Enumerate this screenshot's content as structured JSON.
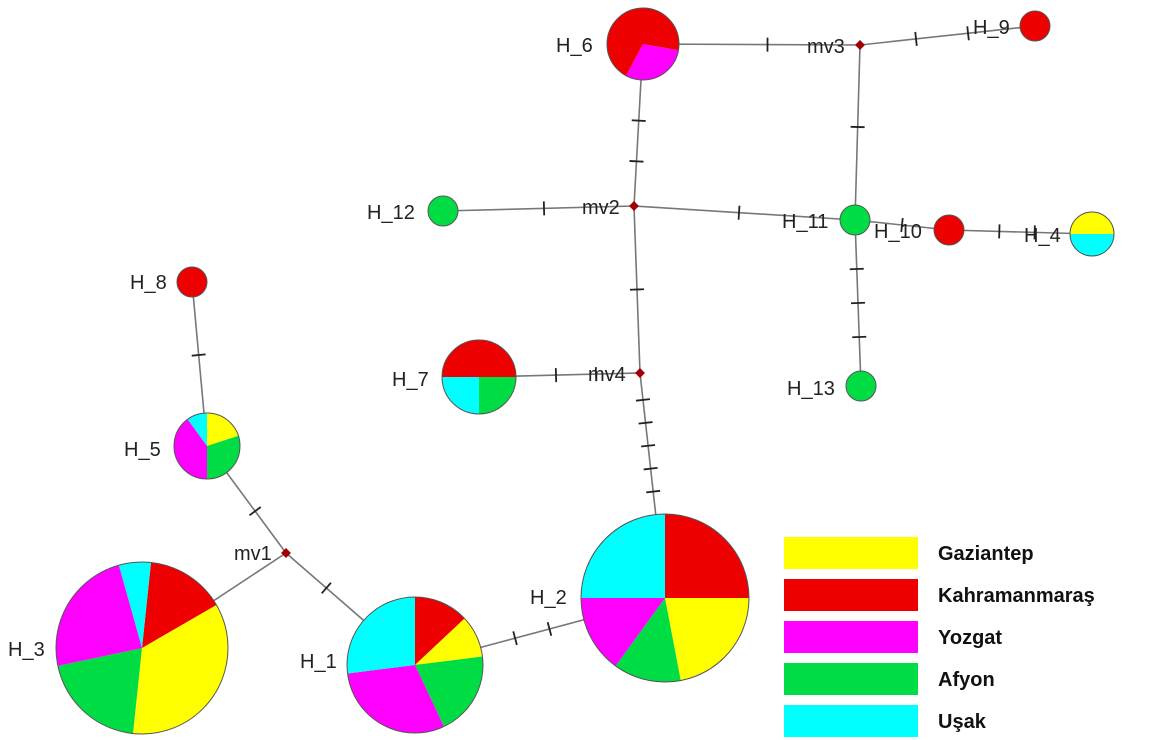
{
  "colors": {
    "Gaziantep": "#ffff00",
    "Kahramanmaras": "#ee0000",
    "Yozgat": "#ff00ff",
    "Afyon": "#00dd44",
    "Usak": "#00ffff",
    "line": "#777777",
    "tick": "#222222",
    "mv_dot": "#a00000"
  },
  "legend": [
    {
      "key": "Gaziantep",
      "label": "Gaziantep"
    },
    {
      "key": "Kahramanmaras",
      "label": "Kahramanmaraş"
    },
    {
      "key": "Yozgat",
      "label": "Yozgat"
    },
    {
      "key": "Afyon",
      "label": "Afyon"
    },
    {
      "key": "Usak",
      "label": "Uşak"
    }
  ],
  "haplotypes": [
    {
      "id": "H_1",
      "label": "H_1"
    },
    {
      "id": "H_2",
      "label": "H_2"
    },
    {
      "id": "H_3",
      "label": "H_3"
    },
    {
      "id": "H_4",
      "label": "H_4"
    },
    {
      "id": "H_5",
      "label": "H_5"
    },
    {
      "id": "H_6",
      "label": "H_6"
    },
    {
      "id": "H_7",
      "label": "H_7"
    },
    {
      "id": "H_8",
      "label": "H_8"
    },
    {
      "id": "H_9",
      "label": "H_9"
    },
    {
      "id": "H_10",
      "label": "H_10"
    },
    {
      "id": "H_11",
      "label": "H_11"
    },
    {
      "id": "H_12",
      "label": "H_12"
    },
    {
      "id": "H_13",
      "label": "H_13"
    }
  ],
  "median_vectors": [
    {
      "id": "mv1",
      "label": "mv1"
    },
    {
      "id": "mv2",
      "label": "mv2"
    },
    {
      "id": "mv3",
      "label": "mv3"
    },
    {
      "id": "mv4",
      "label": "mv4"
    }
  ],
  "edges": [
    {
      "from": "H_6",
      "to": "mv3",
      "mutations": 1
    },
    {
      "from": "mv3",
      "to": "H_9",
      "mutations": 2
    },
    {
      "from": "mv3",
      "to": "H_11",
      "mutations": 1
    },
    {
      "from": "H_6",
      "to": "mv2",
      "mutations": 2
    },
    {
      "from": "H_12",
      "to": "mv2",
      "mutations": 1
    },
    {
      "from": "mv2",
      "to": "H_11",
      "mutations": 1
    },
    {
      "from": "H_11",
      "to": "H_10",
      "mutations": 1
    },
    {
      "from": "H_10",
      "to": "H_4",
      "mutations": 2
    },
    {
      "from": "H_11",
      "to": "H_13",
      "mutations": 3
    },
    {
      "from": "mv2",
      "to": "mv4",
      "mutations": 1
    },
    {
      "from": "H_7",
      "to": "mv4",
      "mutations": 2
    },
    {
      "from": "mv4",
      "to": "H_2",
      "mutations": 5
    },
    {
      "from": "H_8",
      "to": "H_5",
      "mutations": 1
    },
    {
      "from": "H_5",
      "to": "mv1",
      "mutations": 1
    },
    {
      "from": "mv1",
      "to": "H_3",
      "mutations": 0
    },
    {
      "from": "mv1",
      "to": "H_1",
      "mutations": 1
    },
    {
      "from": "H_1",
      "to": "H_2",
      "mutations": 2
    }
  ]
}
